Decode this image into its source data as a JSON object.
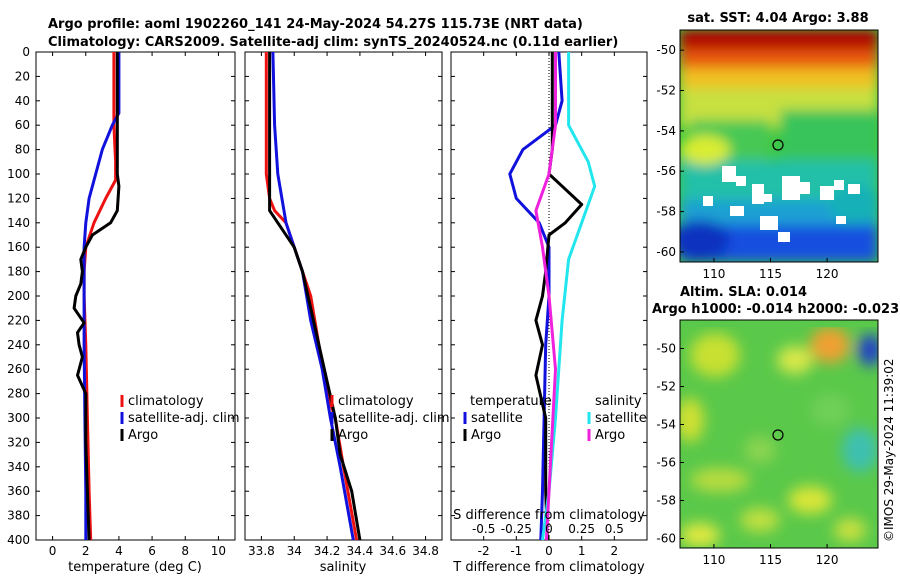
{
  "figure": {
    "title_line1": "Argo profile: aoml 1902260_141 24-May-2024 54.27S 115.73E (NRT data)",
    "title_line2": "Climatology: CARS2009. Satellite-adj clim: synTS_20240524.nc (0.11d earlier)",
    "side_label": "©IMOS 29-May-2024 11:39:02"
  },
  "colors": {
    "climatology": "#ee1111",
    "satellite": "#1111dd",
    "argo": "#000000",
    "satellite_s": "#22e6ee",
    "argo_s": "#ee22dd"
  },
  "chart_data": [
    {
      "id": "temperature",
      "type": "line",
      "xlabel": "temperature (deg C)",
      "ylabel": "",
      "xlim": [
        -1,
        11
      ],
      "ylim": [
        400,
        0
      ],
      "xticks": [
        "0",
        "2",
        "4",
        "6",
        "8",
        "10"
      ],
      "yticks": [
        "0",
        "20",
        "40",
        "60",
        "80",
        "100",
        "120",
        "140",
        "160",
        "180",
        "200",
        "220",
        "240",
        "260",
        "280",
        "300",
        "320",
        "340",
        "360",
        "380",
        "400"
      ],
      "legend": [
        "climatology",
        "satellite-adj. clim",
        "Argo"
      ],
      "series": [
        {
          "name": "climatology",
          "color": "#ee1111",
          "points": [
            [
              3.7,
              0
            ],
            [
              3.7,
              60
            ],
            [
              3.8,
              90
            ],
            [
              3.8,
              105
            ],
            [
              3.2,
              120
            ],
            [
              2.5,
              140
            ],
            [
              2.0,
              160
            ],
            [
              1.9,
              180
            ],
            [
              1.9,
              200
            ],
            [
              2.0,
              240
            ],
            [
              2.1,
              300
            ],
            [
              2.2,
              360
            ],
            [
              2.3,
              400
            ]
          ]
        },
        {
          "name": "satellite-adj. clim",
          "color": "#1111dd",
          "points": [
            [
              4.0,
              0
            ],
            [
              4.0,
              50
            ],
            [
              3.6,
              60
            ],
            [
              3.0,
              80
            ],
            [
              2.6,
              100
            ],
            [
              2.2,
              120
            ],
            [
              2.0,
              140
            ],
            [
              1.9,
              160
            ],
            [
              1.9,
              200
            ],
            [
              1.9,
              240
            ],
            [
              1.95,
              300
            ],
            [
              2.0,
              360
            ],
            [
              2.0,
              400
            ]
          ]
        },
        {
          "name": "Argo",
          "color": "#000000",
          "points": [
            [
              3.9,
              0
            ],
            [
              3.9,
              60
            ],
            [
              3.9,
              100
            ],
            [
              4.0,
              110
            ],
            [
              3.9,
              130
            ],
            [
              3.5,
              140
            ],
            [
              2.4,
              150
            ],
            [
              2.0,
              160
            ],
            [
              1.7,
              170
            ],
            [
              1.8,
              180
            ],
            [
              1.7,
              190
            ],
            [
              1.4,
              200
            ],
            [
              1.3,
              210
            ],
            [
              1.9,
              222
            ],
            [
              1.5,
              230
            ],
            [
              1.6,
              240
            ],
            [
              1.8,
              250
            ],
            [
              1.5,
              265
            ],
            [
              2.0,
              280
            ],
            [
              2.0,
              300
            ],
            [
              2.0,
              320
            ],
            [
              2.1,
              360
            ],
            [
              2.2,
              400
            ]
          ]
        }
      ]
    },
    {
      "id": "salinity",
      "type": "line",
      "xlabel": "salinity",
      "xlim": [
        33.7,
        34.9
      ],
      "ylim": [
        400,
        0
      ],
      "xticks": [
        "33.8",
        "34",
        "34.2",
        "34.4",
        "34.6",
        "34.8"
      ],
      "legend": [
        "climatology",
        "satellite-adj. clim",
        "Argo"
      ],
      "series": [
        {
          "name": "climatology",
          "color": "#ee1111",
          "points": [
            [
              33.83,
              0
            ],
            [
              33.83,
              60
            ],
            [
              33.83,
              100
            ],
            [
              33.85,
              120
            ],
            [
              33.88,
              130
            ],
            [
              33.95,
              140
            ],
            [
              34.0,
              160
            ],
            [
              34.05,
              180
            ],
            [
              34.1,
              200
            ],
            [
              34.15,
              240
            ],
            [
              34.2,
              280
            ],
            [
              34.25,
              300
            ],
            [
              34.3,
              340
            ],
            [
              34.38,
              400
            ]
          ]
        },
        {
          "name": "satellite-adj. clim",
          "color": "#1111dd",
          "points": [
            [
              33.87,
              0
            ],
            [
              33.88,
              60
            ],
            [
              33.9,
              100
            ],
            [
              33.95,
              140
            ],
            [
              34.0,
              160
            ],
            [
              34.05,
              180
            ],
            [
              34.1,
              220
            ],
            [
              34.17,
              260
            ],
            [
              34.22,
              300
            ],
            [
              34.28,
              340
            ],
            [
              34.36,
              400
            ]
          ]
        },
        {
          "name": "Argo",
          "color": "#000000",
          "points": [
            [
              33.85,
              0
            ],
            [
              33.85,
              60
            ],
            [
              33.85,
              110
            ],
            [
              33.85,
              130
            ],
            [
              33.9,
              140
            ],
            [
              34.0,
              160
            ],
            [
              34.05,
              180
            ],
            [
              34.1,
              210
            ],
            [
              34.15,
              240
            ],
            [
              34.2,
              270
            ],
            [
              34.25,
              300
            ],
            [
              34.28,
              330
            ],
            [
              34.35,
              360
            ],
            [
              34.4,
              400
            ]
          ]
        }
      ]
    },
    {
      "id": "difference",
      "type": "line",
      "xlabel": "T difference from climatology",
      "xlabel_top": "S difference from climatology",
      "xlim": [
        -3,
        3
      ],
      "ylim": [
        400,
        0
      ],
      "xticks": [
        "-2",
        "-1",
        "0",
        "1",
        "2"
      ],
      "xticks_s": [
        "-0.5",
        "-0.25",
        "0",
        "0.25",
        "0.5"
      ],
      "legend_left_title": "temperature",
      "legend_right_title": "salinity",
      "legend": [
        "satellite",
        "Argo",
        "satellite",
        "Argo"
      ],
      "series": [
        {
          "name": "T satellite",
          "color": "#1111dd",
          "points": [
            [
              0.3,
              0
            ],
            [
              0.4,
              40
            ],
            [
              0.2,
              60
            ],
            [
              -0.8,
              80
            ],
            [
              -1.2,
              100
            ],
            [
              -1.0,
              120
            ],
            [
              -0.3,
              140
            ],
            [
              0.0,
              160
            ],
            [
              0.0,
              200
            ],
            [
              -0.1,
              240
            ],
            [
              -0.15,
              300
            ],
            [
              -0.2,
              360
            ],
            [
              -0.25,
              400
            ]
          ]
        },
        {
          "name": "T Argo",
          "color": "#000000",
          "points": [
            [
              0.1,
              0
            ],
            [
              0.1,
              80
            ],
            [
              0.0,
              100
            ],
            [
              0.4,
              110
            ],
            [
              1.0,
              125
            ],
            [
              0.5,
              140
            ],
            [
              0.0,
              150
            ],
            [
              -0.1,
              180
            ],
            [
              -0.2,
              200
            ],
            [
              -0.4,
              220
            ],
            [
              -0.2,
              240
            ],
            [
              -0.4,
              265
            ],
            [
              -0.1,
              300
            ],
            [
              -0.1,
              360
            ],
            [
              -0.05,
              400
            ]
          ]
        },
        {
          "name": "S satellite",
          "color": "#22e6ee",
          "points": [
            [
              0.15,
              0
            ],
            [
              0.15,
              60
            ],
            [
              0.3,
              90
            ],
            [
              0.35,
              110
            ],
            [
              0.25,
              140
            ],
            [
              0.15,
              170
            ],
            [
              0.1,
              220
            ],
            [
              0.05,
              300
            ],
            [
              0.0,
              360
            ],
            [
              -0.05,
              400
            ]
          ]
        },
        {
          "name": "S Argo",
          "color": "#ee22dd",
          "points": [
            [
              0.05,
              0
            ],
            [
              0.05,
              60
            ],
            [
              0.0,
              100
            ],
            [
              -0.1,
              130
            ],
            [
              -0.05,
              160
            ],
            [
              0.0,
              200
            ],
            [
              0.05,
              260
            ],
            [
              0.02,
              320
            ],
            [
              0.0,
              360
            ],
            [
              -0.02,
              400
            ]
          ]
        }
      ]
    },
    {
      "id": "sst_map",
      "type": "heatmap",
      "title": "sat. SST: 4.04 Argo: 3.88",
      "xticks": [
        "110",
        "115",
        "120"
      ],
      "yticks": [
        "-50",
        "-52",
        "-54",
        "-56",
        "-58",
        "-60"
      ],
      "marker": [
        115.73,
        -54.27
      ]
    },
    {
      "id": "sla_map",
      "type": "heatmap",
      "title_line1": "Altim. SLA: 0.014",
      "title_line2": "Argo h1000: -0.014 h2000: -0.023",
      "xticks": [
        "110",
        "115",
        "120"
      ],
      "yticks": [
        "-50",
        "-52",
        "-54",
        "-56",
        "-58",
        "-60"
      ],
      "marker": [
        115.73,
        -54.27
      ]
    }
  ]
}
